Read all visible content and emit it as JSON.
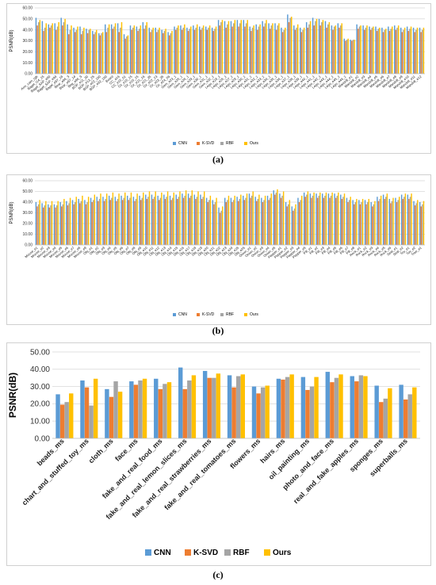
{
  "chart_data": [
    {
      "type": "bar",
      "panel": "a",
      "ylabel": "PSNR(dB)",
      "ylim": [
        0,
        60
      ],
      "yticks": [
        "0.00",
        "10.00",
        "20.00",
        "30.00",
        "40.00",
        "50.00",
        "60.00"
      ],
      "categories": [
        "Arm_cam_rgb",
        "Bagel_t14_15",
        "Bagel_SAP_e60",
        "Bagel_SAP_e94",
        "Bagel_e97_18",
        "Bear_e96_3",
        "Bear_e97_14",
        "Beg_e96_9",
        "BGP_e11_30",
        "BGP_e13_25",
        "BGP_e22_160",
        "BGP_e32_160",
        "Board",
        "CC_a16",
        "CC_e15_01",
        "Cir_e15_15",
        "Cir_e16_15",
        "Cir_e21_16",
        "Cir_e21_35",
        "Cir_e22_13",
        "Cir_e23_35",
        "Cir_e24_06",
        "Gem_e23_1",
        "Gem_e25_1",
        "Gem_e26_1",
        "Gem_e29_1",
        "Gem_e30_1",
        "Gem_e31_1",
        "Gem_e32_1",
        "Lego_e23_1",
        "Lego_e25_1",
        "Lego_e27_1",
        "Lego_e29_1",
        "Lego_e30_1",
        "Lego_e31_1",
        "Lego_e32_1",
        "Lego_e33_1",
        "Lego_e34_1",
        "Lego_e35_1",
        "Lego_e36_1",
        "Lego_e37_1",
        "Lego_e38_1",
        "Lego_e39_1",
        "Lego_e40_1",
        "Lego_e41_1",
        "Lego_e42_1",
        "Lego_e43_1",
        "Lego_e44_1",
        "Lego_e45_1",
        "Lego_e46_1",
        "Mandrill_e1",
        "Mandrill_e2",
        "Mandrill_e3",
        "Mandrill_e4",
        "Mandrill_e5",
        "Mandrill_e6",
        "Mandrill_e7",
        "Mandrill_e8",
        "Mandrill_e9",
        "Mandrill_e10",
        "Mandrill_e11",
        "Mandrill_e12"
      ],
      "series": [
        {
          "name": "CNN",
          "color": "#5b9bd5",
          "values": [
            51,
            48,
            45,
            46,
            51,
            45,
            42,
            43,
            41,
            39,
            37,
            45,
            45,
            46,
            36,
            44,
            43,
            47,
            42,
            42,
            40,
            38,
            43,
            44,
            42,
            44,
            43,
            43,
            42,
            49,
            48,
            48,
            49,
            49,
            43,
            45,
            48,
            46,
            46,
            42,
            54,
            44,
            42,
            47,
            51,
            50,
            48,
            44,
            46,
            32,
            31,
            45,
            44,
            43,
            43,
            42,
            43,
            44,
            42,
            43,
            42,
            42
          ]
        },
        {
          "name": "K-SVD",
          "color": "#ed7d31",
          "values": [
            44,
            39,
            42,
            40,
            44,
            36,
            38,
            36,
            37,
            36,
            35,
            38,
            41,
            38,
            32,
            40,
            39,
            41,
            38,
            38,
            37,
            35,
            40,
            40,
            39,
            40,
            40,
            40,
            39,
            44,
            42,
            43,
            43,
            43,
            39,
            40,
            43,
            41,
            40,
            38,
            47,
            40,
            38,
            42,
            44,
            44,
            42,
            40,
            42,
            30,
            30,
            41,
            40,
            40,
            39,
            38,
            39,
            40,
            38,
            39,
            38,
            38
          ]
        },
        {
          "name": "RBF",
          "color": "#a5a5a5",
          "values": [
            47,
            42,
            44,
            43,
            47,
            40,
            40,
            39,
            40,
            38,
            37,
            42,
            43,
            42,
            34,
            42,
            41,
            44,
            40,
            40,
            39,
            37,
            42,
            42,
            41,
            42,
            42,
            42,
            41,
            47,
            45,
            46,
            46,
            46,
            42,
            43,
            46,
            44,
            44,
            40,
            51,
            42,
            40,
            45,
            48,
            47,
            45,
            43,
            44,
            31,
            31,
            43,
            42,
            42,
            41,
            40,
            41,
            42,
            40,
            41,
            40,
            40
          ]
        },
        {
          "name": "Ours",
          "color": "#ffc000",
          "values": [
            49,
            46,
            46,
            47,
            50,
            44,
            43,
            42,
            41,
            40,
            38,
            45,
            46,
            47,
            35,
            44,
            44,
            47,
            42,
            42,
            41,
            39,
            44,
            45,
            43,
            45,
            44,
            44,
            43,
            49,
            48,
            49,
            49,
            49,
            44,
            45,
            49,
            46,
            46,
            42,
            52,
            45,
            42,
            48,
            50,
            49,
            47,
            44,
            46,
            32,
            31,
            44,
            44,
            43,
            42,
            41,
            43,
            44,
            42,
            43,
            42,
            42
          ]
        }
      ],
      "legend_position": "bottom",
      "caption": "(a)"
    },
    {
      "type": "bar",
      "panel": "b",
      "ylabel": "PSNR(dB)",
      "ylim": [
        0,
        60
      ],
      "yticks": [
        "0.00",
        "10.00",
        "20.00",
        "30.00",
        "40.00",
        "50.00",
        "60.00"
      ],
      "categories": [
        "Mouse_e1",
        "Mouse_e2",
        "Mouse_e3",
        "Mouse_e4",
        "Mouse_e5",
        "Mouse_e6",
        "Mouse_e7",
        "Mouse_e8",
        "Mouse_e9",
        "Obj_e1",
        "Obj_e2",
        "Obj_e3",
        "Obj_e4",
        "Obj_e5",
        "Obj_e6",
        "Obj_e7",
        "Obj_e8",
        "Obj_e9",
        "Obj_e10",
        "Obj_e11",
        "Obj_e12",
        "Obj_e13",
        "Obj_e14",
        "Obj_e15",
        "Obj_e16",
        "Obj_e17",
        "Obj_e18",
        "Obj_e19",
        "Obj_e20",
        "Obj_e21",
        "Obj_e22",
        "Obj_e23",
        "Obj_e24",
        "Obj_e25",
        "Obj_e26",
        "Onion_e1",
        "Onion_e2",
        "Onion_e3",
        "Onion_e4",
        "Onion_e5",
        "Pepper_e1",
        "Pepper_e2",
        "Pepper_e3",
        "Pepper_e4",
        "Pepper_e5",
        "Pill_e1",
        "Pill_e2",
        "Pill_e3",
        "Pill_e4",
        "Pill_e5",
        "Pill_e6",
        "Pill_e7",
        "Pill_e8",
        "Rock_e1",
        "Rock_e2",
        "Rock_e3",
        "Rock_e4",
        "Rock_e5",
        "Rock_e6",
        "Seal_e1",
        "Seal_e2",
        "Toy_e1",
        "Toy_e2",
        "Tree_e1"
      ],
      "series": [
        {
          "name": "CNN",
          "color": "#5b9bd5",
          "values": [
            40,
            39,
            38,
            38,
            40,
            41,
            42,
            43,
            42,
            44,
            45,
            45,
            46,
            45,
            46,
            46,
            45,
            46,
            47,
            47,
            46,
            47,
            46,
            47,
            48,
            48,
            47,
            47,
            44,
            42,
            35,
            44,
            44,
            45,
            46,
            48,
            45,
            44,
            46,
            51,
            48,
            40,
            36,
            44,
            49,
            48,
            48,
            48,
            48,
            48,
            47,
            44,
            42,
            42,
            42,
            40,
            45,
            47,
            43,
            44,
            47,
            47,
            41,
            40
          ]
        },
        {
          "name": "K-SVD",
          "color": "#ed7d31",
          "values": [
            36,
            35,
            35,
            35,
            36,
            37,
            38,
            39,
            38,
            40,
            41,
            41,
            42,
            41,
            42,
            42,
            41,
            42,
            43,
            43,
            42,
            43,
            42,
            43,
            44,
            44,
            43,
            43,
            40,
            38,
            30,
            40,
            40,
            41,
            42,
            44,
            41,
            40,
            42,
            47,
            44,
            36,
            32,
            40,
            45,
            44,
            44,
            44,
            44,
            44,
            43,
            40,
            38,
            38,
            38,
            36,
            41,
            43,
            39,
            40,
            43,
            43,
            37,
            36
          ]
        },
        {
          "name": "RBF",
          "color": "#a5a5a5",
          "values": [
            38,
            37,
            37,
            37,
            38,
            39,
            40,
            41,
            40,
            42,
            43,
            43,
            44,
            43,
            44,
            44,
            43,
            44,
            45,
            45,
            44,
            45,
            44,
            45,
            46,
            46,
            45,
            45,
            42,
            40,
            32,
            42,
            42,
            43,
            44,
            46,
            43,
            42,
            44,
            49,
            46,
            38,
            34,
            42,
            47,
            46,
            46,
            46,
            46,
            46,
            45,
            42,
            40,
            40,
            40,
            38,
            43,
            45,
            41,
            42,
            45,
            45,
            39,
            38
          ]
        },
        {
          "name": "Ours",
          "color": "#ffc000",
          "values": [
            42,
            41,
            41,
            41,
            43,
            44,
            45,
            46,
            45,
            47,
            48,
            48,
            49,
            48,
            49,
            49,
            48,
            49,
            50,
            50,
            49,
            50,
            49,
            50,
            51,
            51,
            50,
            50,
            46,
            44,
            36,
            46,
            46,
            47,
            48,
            50,
            47,
            46,
            48,
            52,
            50,
            42,
            38,
            46,
            50,
            49,
            49,
            49,
            49,
            49,
            48,
            45,
            43,
            43,
            43,
            41,
            46,
            48,
            44,
            45,
            48,
            48,
            42,
            41
          ]
        }
      ],
      "legend_position": "bottom",
      "caption": "(b)"
    },
    {
      "type": "bar",
      "panel": "c",
      "ylabel": "PSNR(dB)",
      "ylim": [
        0,
        50
      ],
      "yticks": [
        "0.00",
        "10.00",
        "20.00",
        "30.00",
        "40.00",
        "50.00"
      ],
      "categories": [
        "beads_ms",
        "chart_and_stuffed_toy_ms",
        "cloth_ms",
        "face_ms",
        "fake_and_real_food_ms",
        "fake_and_real_lemon_slices_ms",
        "fake_and_real_strawberries_ms",
        "fake_and_real_tomatoes_ms",
        "flowers_ms",
        "hairs_ms",
        "oil_painting_ms",
        "photo_and_face_ms",
        "real_and_fake_apples_ms",
        "sponges_ms",
        "superballs_ms"
      ],
      "series": [
        {
          "name": "CNN",
          "color": "#5b9bd5",
          "values": [
            25.5,
            33.5,
            28.5,
            33.0,
            34.5,
            41.0,
            39.0,
            36.5,
            30.0,
            34.5,
            35.5,
            38.5,
            36.0,
            30.5,
            31.0
          ]
        },
        {
          "name": "K-SVD",
          "color": "#ed7d31",
          "values": [
            19.5,
            29.5,
            24.0,
            31.0,
            28.5,
            28.5,
            35.0,
            29.5,
            26.0,
            34.0,
            28.0,
            32.5,
            33.0,
            21.0,
            22.5
          ]
        },
        {
          "name": "RBF",
          "color": "#a5a5a5",
          "values": [
            21.0,
            19.0,
            33.0,
            33.5,
            31.5,
            33.5,
            35.0,
            36.0,
            29.5,
            35.5,
            30.0,
            35.0,
            36.5,
            23.0,
            25.5
          ]
        },
        {
          "name": "Ours",
          "color": "#ffc000",
          "values": [
            26.0,
            34.5,
            27.0,
            34.5,
            32.5,
            36.5,
            37.5,
            37.0,
            30.5,
            37.0,
            35.5,
            37.0,
            36.0,
            29.0,
            29.5
          ]
        }
      ],
      "legend_position": "bottom",
      "caption": "(c)"
    }
  ]
}
